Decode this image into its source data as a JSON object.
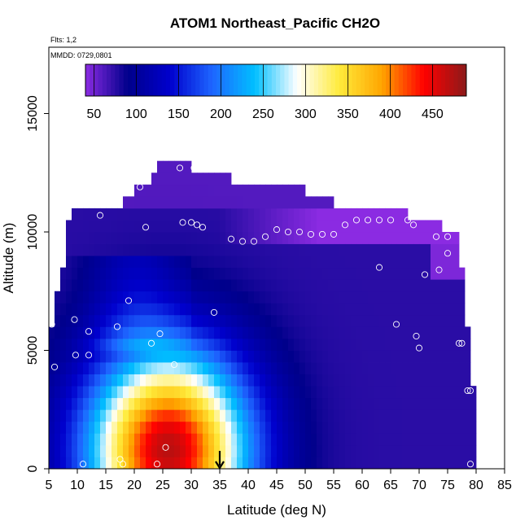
{
  "chart_data": {
    "type": "heatmap",
    "title": "ATOM1 Northeast_Pacific CH2O",
    "notes": [
      "Flts: 1,2",
      "MMDD: 0729,0801"
    ],
    "xlabel": "Latitude (deg N)",
    "ylabel": "Altitude (m)",
    "xlim": [
      5,
      85
    ],
    "ylim": [
      0,
      17800
    ],
    "x_ticks": [
      5,
      10,
      15,
      20,
      25,
      30,
      35,
      40,
      45,
      50,
      55,
      60,
      65,
      70,
      75,
      80,
      85
    ],
    "y_ticks": [
      0,
      5000,
      10000,
      15000
    ],
    "colorbar": {
      "ticks": [
        50,
        100,
        150,
        200,
        250,
        300,
        350,
        400,
        450
      ],
      "range": [
        40,
        490
      ],
      "colors": [
        "#8B2BE2",
        "#00008B",
        "#0000CD",
        "#1E66FF",
        "#00BFFF",
        "#FFFFFF",
        "#FFEB3B",
        "#FFA500",
        "#FF0000",
        "#8B1A1A"
      ]
    },
    "grid_cell": {
      "dlat": 1,
      "dalt": 500
    },
    "boundary": [
      [
        5,
        0,
        6000
      ],
      [
        6,
        0,
        7500
      ],
      [
        7,
        0,
        8500
      ],
      [
        8,
        0,
        10500
      ],
      [
        9,
        0,
        11000
      ],
      [
        12,
        0,
        11000
      ],
      [
        15,
        0,
        11000
      ],
      [
        18,
        0,
        11500
      ],
      [
        20,
        0,
        12000
      ],
      [
        23,
        0,
        12500
      ],
      [
        24,
        0,
        13000
      ],
      [
        28,
        0,
        13000
      ],
      [
        30,
        0,
        12500
      ],
      [
        37,
        0,
        12000
      ],
      [
        45,
        0,
        12000
      ],
      [
        50,
        0,
        11500
      ],
      [
        55,
        0,
        11000
      ],
      [
        65,
        0,
        11000
      ],
      [
        68,
        0,
        10500
      ],
      [
        72,
        0,
        10500
      ],
      [
        74,
        0,
        10000
      ],
      [
        76,
        0,
        10000
      ],
      [
        77,
        0,
        8500
      ],
      [
        78,
        0,
        6000
      ],
      [
        79,
        0,
        3500
      ]
    ],
    "field_peak": {
      "lat": 26,
      "alt": 800,
      "value": 470
    },
    "points": [
      {
        "lat": 5.5,
        "alt": 6100
      },
      {
        "lat": 6,
        "alt": 4300
      },
      {
        "lat": 7,
        "alt": 10500
      },
      {
        "lat": 7.5,
        "alt": 11200
      },
      {
        "lat": 9.5,
        "alt": 6300
      },
      {
        "lat": 9.7,
        "alt": 4800
      },
      {
        "lat": 11,
        "alt": 200
      },
      {
        "lat": 12,
        "alt": 5800
      },
      {
        "lat": 12,
        "alt": 4800
      },
      {
        "lat": 14,
        "alt": 11200
      },
      {
        "lat": 14,
        "alt": 10700
      },
      {
        "lat": 17,
        "alt": 6000
      },
      {
        "lat": 17.5,
        "alt": 400
      },
      {
        "lat": 18,
        "alt": 200
      },
      {
        "lat": 19,
        "alt": 7100
      },
      {
        "lat": 21,
        "alt": 11900
      },
      {
        "lat": 22,
        "alt": 10200
      },
      {
        "lat": 23,
        "alt": 5300
      },
      {
        "lat": 24,
        "alt": 200
      },
      {
        "lat": 24.5,
        "alt": 5700
      },
      {
        "lat": 25.5,
        "alt": 900
      },
      {
        "lat": 27,
        "alt": 4400
      },
      {
        "lat": 28,
        "alt": 12700
      },
      {
        "lat": 28.5,
        "alt": 10400
      },
      {
        "lat": 30,
        "alt": 10400
      },
      {
        "lat": 30.5,
        "alt": 12700
      },
      {
        "lat": 31,
        "alt": 10300
      },
      {
        "lat": 32,
        "alt": 10200
      },
      {
        "lat": 34,
        "alt": 6600
      },
      {
        "lat": 37,
        "alt": 9700
      },
      {
        "lat": 39,
        "alt": 9600
      },
      {
        "lat": 41,
        "alt": 9600
      },
      {
        "lat": 43,
        "alt": 9800
      },
      {
        "lat": 45,
        "alt": 10100
      },
      {
        "lat": 47,
        "alt": 10000
      },
      {
        "lat": 49,
        "alt": 10000
      },
      {
        "lat": 51,
        "alt": 9900
      },
      {
        "lat": 53,
        "alt": 9900
      },
      {
        "lat": 55,
        "alt": 9900
      },
      {
        "lat": 57,
        "alt": 10300
      },
      {
        "lat": 59,
        "alt": 10500
      },
      {
        "lat": 61,
        "alt": 10500
      },
      {
        "lat": 63,
        "alt": 10500
      },
      {
        "lat": 63,
        "alt": 8500
      },
      {
        "lat": 65,
        "alt": 10500
      },
      {
        "lat": 66,
        "alt": 6100
      },
      {
        "lat": 67,
        "alt": 11300
      },
      {
        "lat": 68,
        "alt": 10500
      },
      {
        "lat": 69,
        "alt": 10300
      },
      {
        "lat": 69.5,
        "alt": 5600
      },
      {
        "lat": 70,
        "alt": 5100
      },
      {
        "lat": 71,
        "alt": 8200
      },
      {
        "lat": 73,
        "alt": 9800
      },
      {
        "lat": 73.5,
        "alt": 8400
      },
      {
        "lat": 75,
        "alt": 9800
      },
      {
        "lat": 75,
        "alt": 9100
      },
      {
        "lat": 77,
        "alt": 5300
      },
      {
        "lat": 77.5,
        "alt": 5300
      },
      {
        "lat": 78.5,
        "alt": 3300
      },
      {
        "lat": 79,
        "alt": 3300
      },
      {
        "lat": 79,
        "alt": 200
      }
    ],
    "arrow_marker_lat": 35,
    "grid": false,
    "legend": "top (horizontal color bar)"
  }
}
